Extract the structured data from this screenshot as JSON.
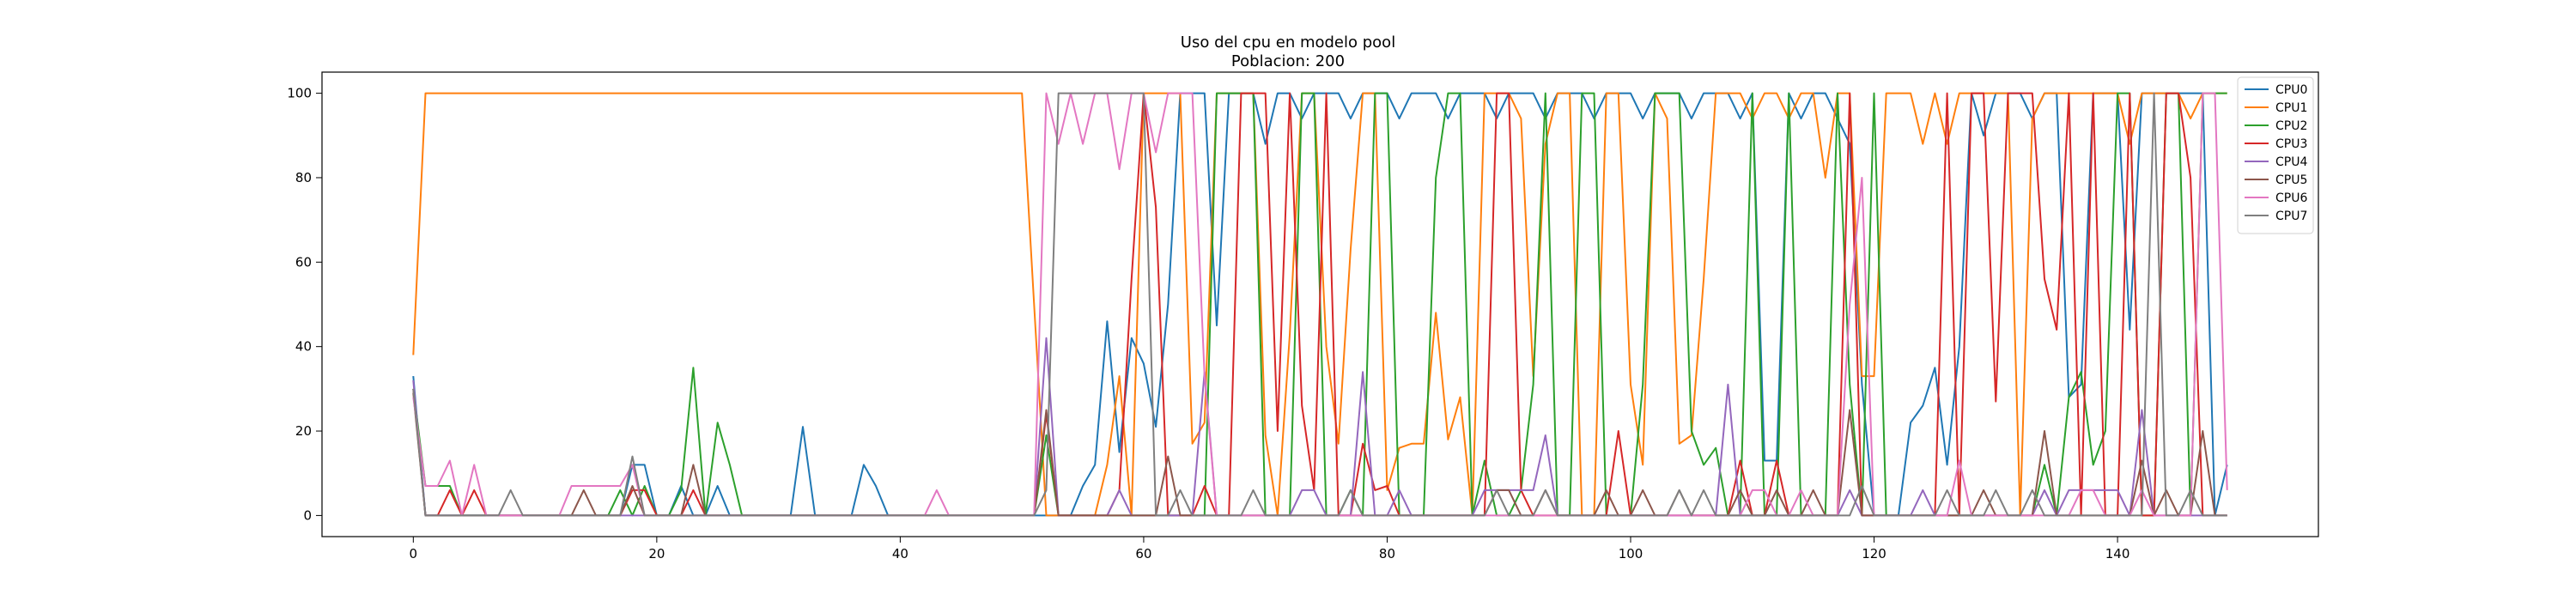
{
  "chart_data": {
    "type": "line",
    "title": "Uso del cpu en modelo pool",
    "subtitle": "Poblacion: 200",
    "xlabel": "",
    "ylabel": "",
    "xlim": [
      -7.5,
      156.5
    ],
    "ylim": [
      -5,
      105
    ],
    "x_ticks": [
      0,
      20,
      40,
      60,
      80,
      100,
      120,
      140
    ],
    "y_ticks": [
      0,
      20,
      40,
      60,
      80,
      100
    ],
    "legend_position": "top-right",
    "grid": false,
    "x": [
      0,
      1,
      2,
      3,
      4,
      5,
      6,
      7,
      8,
      9,
      10,
      11,
      12,
      13,
      14,
      15,
      16,
      17,
      18,
      19,
      20,
      21,
      22,
      23,
      24,
      25,
      26,
      27,
      28,
      29,
      30,
      31,
      32,
      33,
      34,
      35,
      36,
      37,
      38,
      39,
      40,
      41,
      42,
      43,
      44,
      45,
      46,
      47,
      48,
      49,
      50,
      51,
      52,
      53,
      54,
      55,
      56,
      57,
      58,
      59,
      60,
      61,
      62,
      63,
      64,
      65,
      66,
      67,
      68,
      69,
      70,
      71,
      72,
      73,
      74,
      75,
      76,
      77,
      78,
      79,
      80,
      81,
      82,
      83,
      84,
      85,
      86,
      87,
      88,
      89,
      90,
      91,
      92,
      93,
      94,
      95,
      96,
      97,
      98,
      99,
      100,
      101,
      102,
      103,
      104,
      105,
      106,
      107,
      108,
      109,
      110,
      111,
      112,
      113,
      114,
      115,
      116,
      117,
      118,
      119,
      120,
      121,
      122,
      123,
      124,
      125,
      126,
      127,
      128,
      129,
      130,
      131,
      132,
      133,
      134,
      135,
      136,
      137,
      138,
      139,
      140,
      141,
      142,
      143,
      144,
      145,
      146,
      147,
      148,
      149
    ],
    "series": [
      {
        "name": "CPU0",
        "color": "#1f77b4",
        "values": [
          33,
          0,
          0,
          0,
          0,
          0,
          0,
          0,
          0,
          0,
          0,
          0,
          0,
          0,
          0,
          0,
          0,
          0,
          12,
          12,
          0,
          0,
          7,
          0,
          0,
          7,
          0,
          0,
          0,
          0,
          0,
          0,
          21,
          0,
          0,
          0,
          0,
          12,
          7,
          0,
          0,
          0,
          0,
          0,
          0,
          0,
          0,
          0,
          0,
          0,
          0,
          0,
          0,
          0,
          0,
          7,
          12,
          46,
          15,
          42,
          36,
          21,
          50,
          100,
          100,
          100,
          45,
          100,
          100,
          100,
          88,
          100,
          100,
          94,
          100,
          100,
          100,
          94,
          100,
          100,
          100,
          94,
          100,
          100,
          100,
          94,
          100,
          100,
          100,
          94,
          100,
          100,
          100,
          94,
          100,
          100,
          100,
          94,
          100,
          100,
          100,
          94,
          100,
          100,
          100,
          94,
          100,
          100,
          100,
          94,
          100,
          13,
          13,
          100,
          94,
          100,
          100,
          94,
          88,
          31,
          0,
          0,
          0,
          22,
          26,
          35,
          12,
          40,
          100,
          90,
          100,
          100,
          100,
          94,
          100,
          100,
          28,
          31,
          100,
          100,
          100,
          44,
          100,
          100,
          100,
          100,
          100,
          100,
          0,
          12
        ]
      },
      {
        "name": "CPU1",
        "color": "#ff7f0e",
        "values": [
          38,
          100,
          100,
          100,
          100,
          100,
          100,
          100,
          100,
          100,
          100,
          100,
          100,
          100,
          100,
          100,
          100,
          100,
          100,
          100,
          100,
          100,
          100,
          100,
          100,
          100,
          100,
          100,
          100,
          100,
          100,
          100,
          100,
          100,
          100,
          100,
          100,
          100,
          100,
          100,
          100,
          100,
          100,
          100,
          100,
          100,
          100,
          100,
          100,
          100,
          100,
          50,
          0,
          0,
          0,
          0,
          0,
          12,
          33,
          0,
          100,
          100,
          100,
          100,
          17,
          22,
          100,
          100,
          100,
          100,
          19,
          0,
          43,
          100,
          100,
          40,
          17,
          63,
          100,
          100,
          6,
          16,
          17,
          17,
          48,
          18,
          28,
          0,
          100,
          100,
          100,
          94,
          33,
          88,
          100,
          100,
          0,
          0,
          100,
          100,
          31,
          12,
          100,
          94,
          17,
          19,
          56,
          100,
          100,
          100,
          94,
          100,
          100,
          94,
          100,
          100,
          80,
          100,
          100,
          33,
          33,
          100,
          100,
          100,
          88,
          100,
          88,
          100,
          100,
          100,
          100,
          100,
          0,
          94,
          100,
          100,
          100,
          100,
          100,
          100,
          100,
          88,
          100,
          100,
          100,
          100,
          94,
          100,
          100,
          100
        ]
      },
      {
        "name": "CPU2",
        "color": "#2ca02c",
        "values": [
          30,
          7,
          7,
          7,
          0,
          0,
          0,
          0,
          0,
          0,
          0,
          0,
          0,
          0,
          0,
          0,
          0,
          6,
          0,
          7,
          0,
          0,
          6,
          35,
          0,
          22,
          12,
          0,
          0,
          0,
          0,
          0,
          0,
          0,
          0,
          0,
          0,
          0,
          0,
          0,
          0,
          0,
          0,
          0,
          0,
          0,
          0,
          0,
          0,
          0,
          0,
          0,
          19,
          0,
          0,
          0,
          0,
          0,
          0,
          0,
          0,
          0,
          0,
          0,
          0,
          0,
          100,
          100,
          100,
          100,
          0,
          0,
          0,
          100,
          100,
          0,
          0,
          6,
          0,
          100,
          100,
          0,
          0,
          0,
          80,
          100,
          100,
          0,
          13,
          0,
          0,
          6,
          31,
          100,
          0,
          0,
          100,
          100,
          0,
          0,
          0,
          31,
          100,
          100,
          100,
          20,
          12,
          16,
          0,
          0,
          100,
          0,
          0,
          100,
          0,
          0,
          0,
          100,
          31,
          0,
          100,
          0,
          0,
          0,
          0,
          0,
          0,
          0,
          0,
          0,
          0,
          0,
          0,
          0,
          12,
          0,
          28,
          34,
          12,
          20,
          100,
          100,
          0,
          0,
          100,
          100,
          0,
          100,
          100,
          100
        ]
      },
      {
        "name": "CPU3",
        "color": "#d62728",
        "values": [
          30,
          0,
          0,
          6,
          0,
          6,
          0,
          0,
          0,
          0,
          0,
          0,
          0,
          0,
          0,
          0,
          0,
          0,
          6,
          6,
          0,
          0,
          0,
          6,
          0,
          0,
          0,
          0,
          0,
          0,
          0,
          0,
          0,
          0,
          0,
          0,
          0,
          0,
          0,
          0,
          0,
          0,
          0,
          0,
          0,
          0,
          0,
          0,
          0,
          0,
          0,
          0,
          24,
          0,
          0,
          0,
          0,
          0,
          6,
          56,
          100,
          73,
          0,
          0,
          0,
          7,
          0,
          0,
          100,
          100,
          100,
          20,
          100,
          26,
          6,
          100,
          0,
          0,
          17,
          6,
          7,
          0,
          0,
          0,
          0,
          0,
          0,
          0,
          0,
          100,
          100,
          6,
          0,
          0,
          0,
          0,
          0,
          0,
          0,
          20,
          0,
          0,
          0,
          0,
          0,
          0,
          0,
          0,
          0,
          13,
          0,
          0,
          13,
          0,
          0,
          0,
          0,
          0,
          100,
          0,
          0,
          0,
          0,
          0,
          0,
          0,
          100,
          0,
          100,
          100,
          27,
          100,
          100,
          100,
          56,
          44,
          100,
          0,
          100,
          0,
          0,
          100,
          0,
          0,
          100,
          100,
          80,
          0,
          0,
          0
        ]
      },
      {
        "name": "CPU4",
        "color": "#9467bd",
        "values": [
          32,
          0,
          0,
          0,
          0,
          0,
          0,
          0,
          0,
          0,
          0,
          0,
          0,
          0,
          0,
          0,
          0,
          0,
          0,
          0,
          0,
          0,
          0,
          0,
          0,
          0,
          0,
          0,
          0,
          0,
          0,
          0,
          0,
          0,
          0,
          0,
          0,
          0,
          0,
          0,
          0,
          0,
          0,
          0,
          0,
          0,
          0,
          0,
          0,
          0,
          0,
          0,
          42,
          0,
          0,
          0,
          0,
          0,
          6,
          0,
          0,
          0,
          0,
          0,
          0,
          34,
          0,
          0,
          0,
          0,
          0,
          0,
          0,
          6,
          6,
          0,
          0,
          0,
          34,
          0,
          0,
          6,
          0,
          0,
          0,
          0,
          0,
          0,
          6,
          6,
          6,
          6,
          6,
          19,
          0,
          0,
          0,
          0,
          0,
          0,
          0,
          0,
          0,
          0,
          0,
          0,
          0,
          0,
          31,
          0,
          0,
          0,
          0,
          0,
          0,
          0,
          0,
          0,
          6,
          0,
          0,
          0,
          0,
          0,
          6,
          0,
          0,
          0,
          0,
          0,
          0,
          0,
          0,
          0,
          6,
          0,
          6,
          6,
          6,
          6,
          6,
          0,
          25,
          0,
          0,
          0,
          0,
          0,
          0,
          0
        ]
      },
      {
        "name": "CPU5",
        "color": "#8c564b",
        "values": [
          29,
          0,
          0,
          0,
          0,
          0,
          0,
          0,
          0,
          0,
          0,
          0,
          0,
          0,
          6,
          0,
          0,
          0,
          7,
          0,
          0,
          0,
          0,
          12,
          0,
          0,
          0,
          0,
          0,
          0,
          0,
          0,
          0,
          0,
          0,
          0,
          0,
          0,
          0,
          0,
          0,
          0,
          0,
          0,
          0,
          0,
          0,
          0,
          0,
          0,
          0,
          0,
          25,
          0,
          0,
          0,
          0,
          0,
          0,
          0,
          0,
          0,
          14,
          0,
          0,
          0,
          0,
          0,
          0,
          0,
          0,
          0,
          0,
          0,
          0,
          0,
          0,
          0,
          0,
          0,
          0,
          0,
          0,
          0,
          0,
          0,
          0,
          0,
          0,
          6,
          6,
          0,
          0,
          6,
          0,
          0,
          0,
          0,
          6,
          0,
          0,
          6,
          0,
          0,
          6,
          0,
          0,
          0,
          0,
          6,
          0,
          0,
          6,
          0,
          0,
          6,
          0,
          0,
          25,
          0,
          0,
          0,
          0,
          0,
          0,
          0,
          0,
          0,
          0,
          6,
          0,
          0,
          0,
          0,
          20,
          0,
          0,
          0,
          0,
          0,
          0,
          0,
          13,
          0,
          6,
          0,
          0,
          20,
          0,
          0
        ]
      },
      {
        "name": "CPU6",
        "color": "#e377c2",
        "values": [
          28,
          7,
          7,
          13,
          0,
          12,
          0,
          0,
          0,
          0,
          0,
          0,
          0,
          7,
          7,
          7,
          7,
          7,
          12,
          0,
          0,
          0,
          0,
          0,
          0,
          0,
          0,
          0,
          0,
          0,
          0,
          0,
          0,
          0,
          0,
          0,
          0,
          0,
          0,
          0,
          0,
          0,
          0,
          6,
          0,
          0,
          0,
          0,
          0,
          0,
          0,
          0,
          100,
          88,
          100,
          88,
          100,
          100,
          82,
          100,
          100,
          86,
          100,
          100,
          100,
          33,
          0,
          0,
          0,
          0,
          0,
          0,
          0,
          0,
          0,
          0,
          0,
          0,
          0,
          0,
          0,
          0,
          0,
          0,
          0,
          0,
          0,
          0,
          0,
          0,
          0,
          0,
          0,
          0,
          0,
          0,
          0,
          0,
          0,
          0,
          0,
          0,
          0,
          0,
          0,
          0,
          0,
          0,
          0,
          0,
          6,
          6,
          0,
          0,
          6,
          0,
          0,
          0,
          50,
          80,
          0,
          0,
          0,
          0,
          0,
          0,
          0,
          13,
          0,
          0,
          0,
          0,
          0,
          0,
          0,
          0,
          0,
          6,
          6,
          0,
          0,
          0,
          6,
          0,
          0,
          0,
          0,
          100,
          100,
          6
        ]
      },
      {
        "name": "CPU7",
        "color": "#7f7f7f",
        "values": [
          30,
          0,
          0,
          0,
          0,
          0,
          0,
          0,
          6,
          0,
          0,
          0,
          0,
          0,
          0,
          0,
          0,
          0,
          14,
          0,
          0,
          0,
          0,
          0,
          0,
          0,
          0,
          0,
          0,
          0,
          0,
          0,
          0,
          0,
          0,
          0,
          0,
          0,
          0,
          0,
          0,
          0,
          0,
          0,
          0,
          0,
          0,
          0,
          0,
          0,
          0,
          0,
          6,
          100,
          100,
          100,
          100,
          100,
          100,
          100,
          100,
          0,
          0,
          6,
          0,
          0,
          0,
          0,
          0,
          6,
          0,
          0,
          0,
          0,
          0,
          0,
          0,
          6,
          0,
          0,
          0,
          0,
          0,
          0,
          0,
          0,
          0,
          0,
          0,
          6,
          0,
          0,
          0,
          6,
          0,
          0,
          0,
          0,
          0,
          0,
          0,
          0,
          0,
          0,
          6,
          0,
          6,
          0,
          0,
          0,
          0,
          0,
          0,
          0,
          0,
          0,
          0,
          0,
          0,
          7,
          0,
          0,
          0,
          0,
          0,
          0,
          6,
          0,
          0,
          0,
          6,
          0,
          0,
          6,
          0,
          0,
          0,
          0,
          0,
          0,
          0,
          0,
          0,
          100,
          0,
          0,
          6,
          0,
          0,
          0
        ]
      }
    ]
  }
}
